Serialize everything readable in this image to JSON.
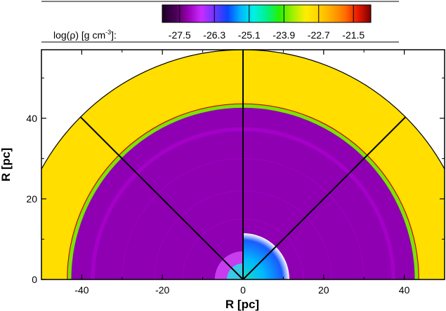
{
  "chart_data": {
    "type": "heatmap",
    "description_free": true,
    "xlabel": "R [pc]",
    "ylabel": "R [pc]",
    "xlim": [
      -50,
      50
    ],
    "ylim": [
      0,
      57
    ],
    "x_ticks": [
      -40,
      -20,
      0,
      20,
      40
    ],
    "y_ticks": [
      0,
      20,
      40
    ],
    "x_tick_labels": [
      "-40",
      "-20",
      "0",
      "20",
      "40"
    ],
    "y_tick_labels": [
      "0",
      "20",
      "40"
    ],
    "colorbar": {
      "label": "log(ρ) [g cm⁻³]:",
      "label_parts": [
        "log(",
        "ρ",
        ") [g cm",
        "-3",
        "]:"
      ],
      "range": [
        -28.1,
        -20.9
      ],
      "tick_values": [
        -27.5,
        -26.3,
        -25.1,
        -23.9,
        -22.7,
        -21.5
      ],
      "tick_labels": [
        "-27.5",
        "-26.3",
        "-25.1",
        "-23.9",
        "-22.7",
        "-21.5"
      ],
      "colors": [
        "#1a0026",
        "#4b0056",
        "#9a00b4",
        "#c82cff",
        "#6d36ff",
        "#0a45ff",
        "#00b4ff",
        "#00f0e6",
        "#00f08c",
        "#28f000",
        "#a0f000",
        "#ffee00",
        "#ffd200",
        "#ffa800",
        "#ff7000",
        "#e81800",
        "#7a0000"
      ]
    },
    "regions": [
      {
        "name": "ambient medium",
        "log_rho": -21.9,
        "outer_radius_pc": 57
      },
      {
        "name": "shell edge",
        "log_rho": -21.0,
        "radius_pc": 43.7
      },
      {
        "name": "dense shell",
        "log_rho": -23.6,
        "inner_radius_pc": 42.6,
        "outer_radius_pc": 43.5
      },
      {
        "name": "bubble interior",
        "log_rho": -27.3,
        "outer_radius_pc": 42.6
      },
      {
        "name": "bubble interior ring",
        "log_rho": -27.05,
        "inner_radius_pc": 36.8,
        "outer_radius_pc": 37.8
      },
      {
        "name": "inner cavity",
        "log_rho": -25.6,
        "outer_radius_pc": 11.5
      }
    ],
    "sector_lines_deg": [
      45,
      90,
      135
    ],
    "colors": {
      "ambient": "#ffde00",
      "shell": "#7ce400",
      "interior": "#8e00b2",
      "interior_light": "#a400c8",
      "shell_edge": "#c80000"
    }
  }
}
